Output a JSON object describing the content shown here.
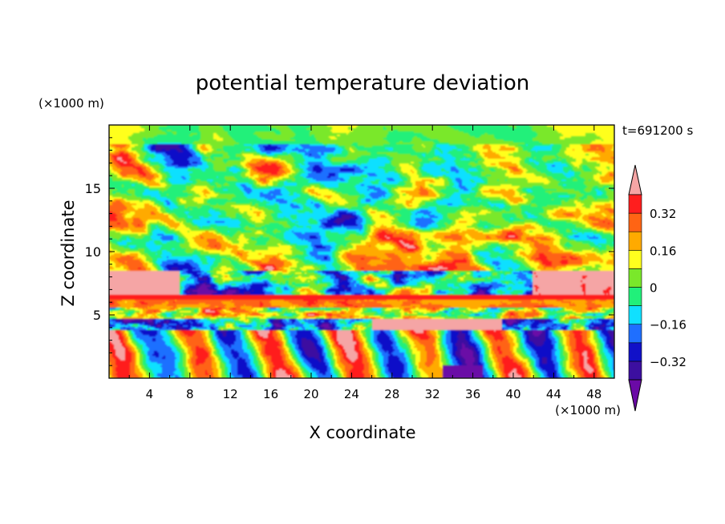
{
  "chart_data": {
    "type": "heatmap",
    "title": "potential temperature deviation",
    "xlabel": "X coordinate",
    "ylabel": "Z coordinate",
    "x_unit": "(×1000 m)",
    "y_unit": "(×1000 m)",
    "time_label": "t=691200 s",
    "xlim": [
      0,
      50
    ],
    "ylim": [
      0,
      20
    ],
    "x_ticks": [
      4,
      8,
      12,
      16,
      20,
      24,
      28,
      32,
      36,
      40,
      44,
      48
    ],
    "y_ticks": [
      5,
      10,
      15
    ],
    "colorbar": {
      "levels": [
        -0.4,
        -0.32,
        -0.24,
        -0.16,
        -0.08,
        0,
        0.08,
        0.16,
        0.24,
        0.32,
        0.4
      ],
      "labels": [
        "0.32",
        "0.16",
        "0",
        "−0.16",
        "−0.32"
      ],
      "label_values": [
        0.32,
        0.16,
        0,
        -0.16,
        -0.32
      ],
      "colors": [
        "#6b0aa6",
        "#3c0fa0",
        "#1111c8",
        "#1f6fff",
        "#10e0ff",
        "#21f07a",
        "#7ae82a",
        "#ffff1e",
        "#ffaa00",
        "#ff6414",
        "#ff1e1e",
        "#f5a5a5"
      ],
      "extend": "both"
    }
  }
}
